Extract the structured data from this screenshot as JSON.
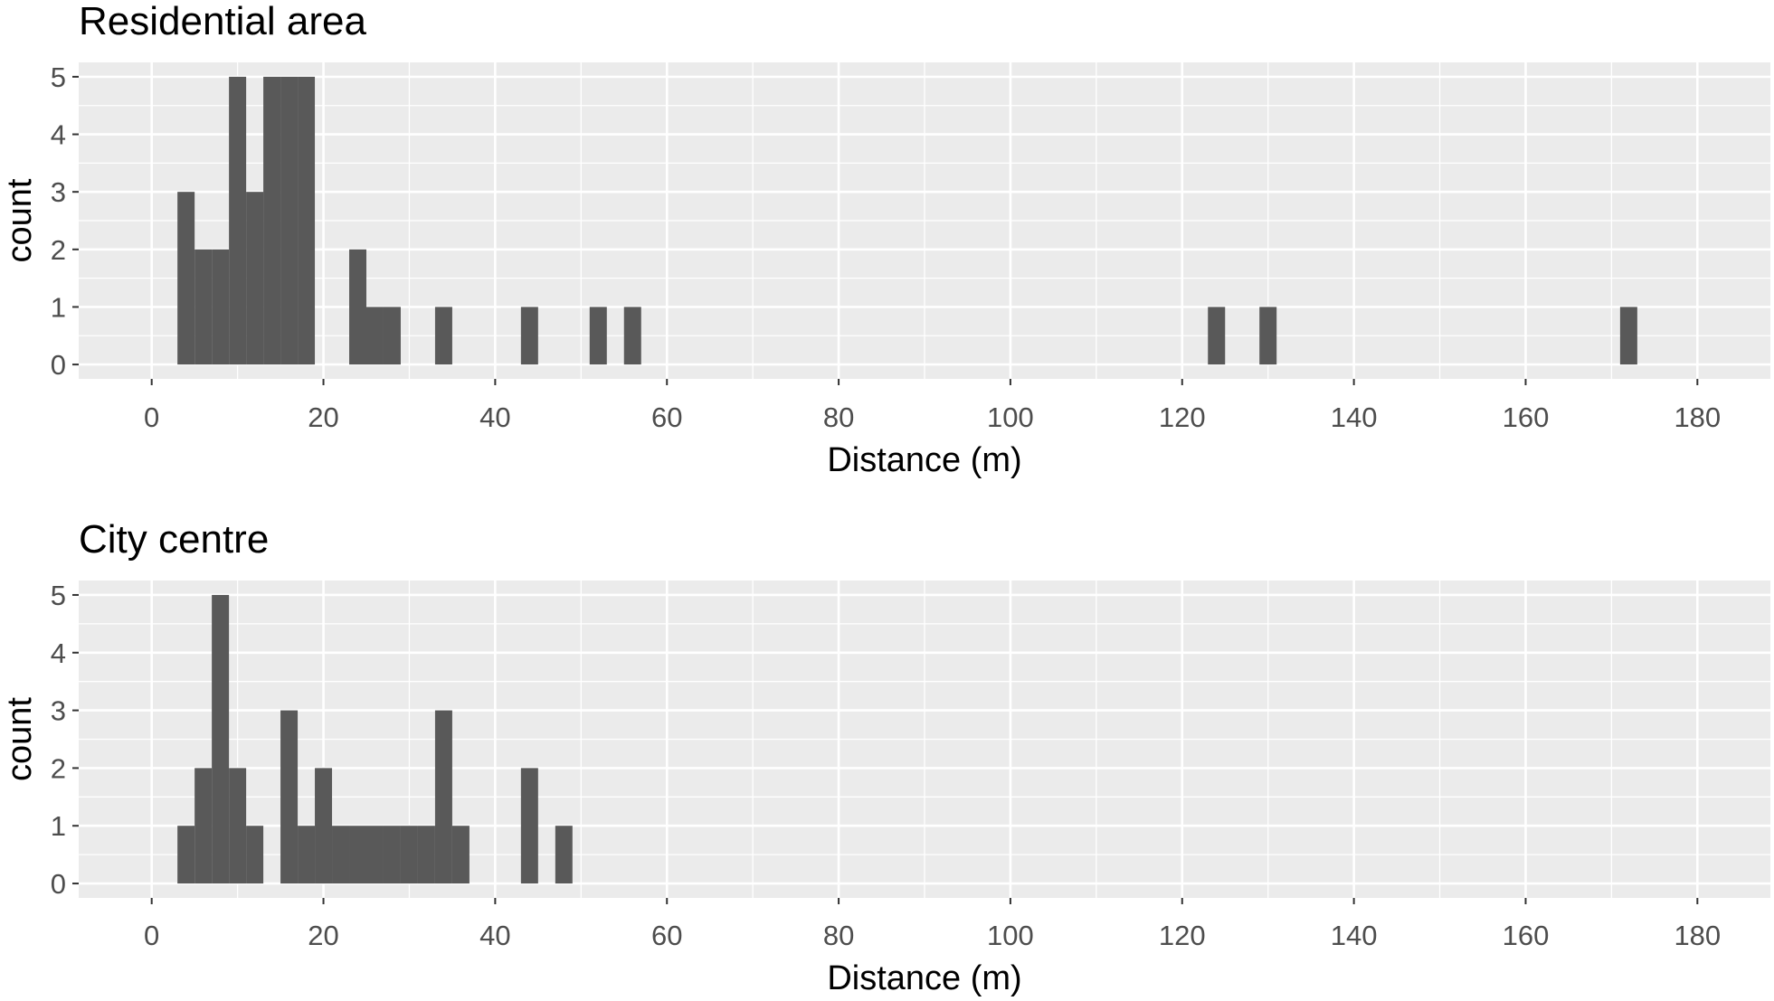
{
  "chart_data": [
    {
      "type": "bar",
      "title": "Residential area",
      "xlabel": "Distance (m)",
      "ylabel": "count",
      "xlim": [
        -8.5,
        188.5
      ],
      "ylim": [
        -0.25,
        5.25
      ],
      "x_ticks": [
        0,
        20,
        40,
        60,
        80,
        100,
        120,
        140,
        160,
        180
      ],
      "y_ticks": [
        0,
        1,
        2,
        3,
        4,
        5
      ],
      "bin_width": 2,
      "grid": true,
      "legend": "none",
      "bar_color": "#595959",
      "panel_color": "#ebebeb",
      "bins": [
        {
          "x0": 3,
          "count": 3
        },
        {
          "x0": 5,
          "count": 2
        },
        {
          "x0": 7,
          "count": 2
        },
        {
          "x0": 9,
          "count": 5
        },
        {
          "x0": 11,
          "count": 3
        },
        {
          "x0": 13,
          "count": 5
        },
        {
          "x0": 15,
          "count": 5
        },
        {
          "x0": 17,
          "count": 5
        },
        {
          "x0": 23,
          "count": 2
        },
        {
          "x0": 25,
          "count": 1
        },
        {
          "x0": 27,
          "count": 1
        },
        {
          "x0": 33,
          "count": 1
        },
        {
          "x0": 43,
          "count": 1
        },
        {
          "x0": 51,
          "count": 1
        },
        {
          "x0": 55,
          "count": 1
        },
        {
          "x0": 123,
          "count": 1
        },
        {
          "x0": 129,
          "count": 1
        },
        {
          "x0": 171,
          "count": 1
        }
      ]
    },
    {
      "type": "bar",
      "title": "City centre",
      "xlabel": "Distance (m)",
      "ylabel": "count",
      "xlim": [
        -8.5,
        188.5
      ],
      "ylim": [
        -0.25,
        5.25
      ],
      "x_ticks": [
        0,
        20,
        40,
        60,
        80,
        100,
        120,
        140,
        160,
        180
      ],
      "y_ticks": [
        0,
        1,
        2,
        3,
        4,
        5
      ],
      "bin_width": 2,
      "grid": true,
      "legend": "none",
      "bar_color": "#595959",
      "panel_color": "#ebebeb",
      "bins": [
        {
          "x0": 3,
          "count": 1
        },
        {
          "x0": 5,
          "count": 2
        },
        {
          "x0": 7,
          "count": 5
        },
        {
          "x0": 9,
          "count": 2
        },
        {
          "x0": 11,
          "count": 1
        },
        {
          "x0": 15,
          "count": 3
        },
        {
          "x0": 17,
          "count": 1
        },
        {
          "x0": 19,
          "count": 2
        },
        {
          "x0": 21,
          "count": 1
        },
        {
          "x0": 23,
          "count": 1
        },
        {
          "x0": 25,
          "count": 1
        },
        {
          "x0": 27,
          "count": 1
        },
        {
          "x0": 29,
          "count": 1
        },
        {
          "x0": 31,
          "count": 1
        },
        {
          "x0": 33,
          "count": 3
        },
        {
          "x0": 35,
          "count": 1
        },
        {
          "x0": 43,
          "count": 2
        },
        {
          "x0": 47,
          "count": 1
        }
      ]
    }
  ]
}
